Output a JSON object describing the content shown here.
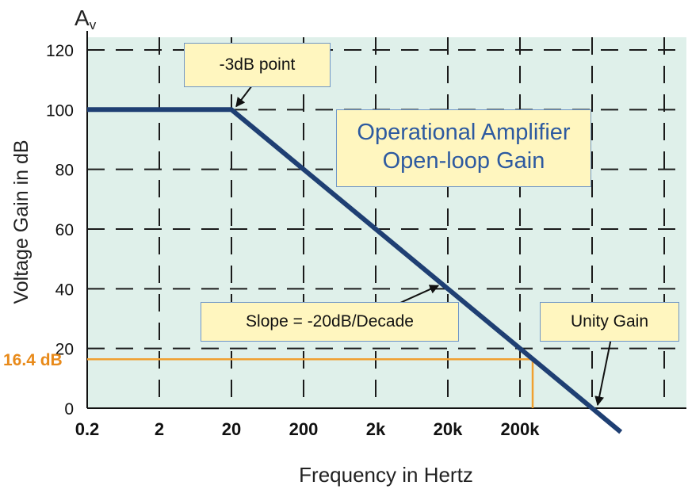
{
  "chart_data": {
    "type": "line",
    "title": "Operational Amplifier Open-loop Gain",
    "title_lines": [
      "Operational Amplifier",
      "Open-loop Gain"
    ],
    "ylabel": "Voltage Gain in dB",
    "ysymbol": "A",
    "ysymbol_sub": "v",
    "xlabel": "Frequency in Hertz",
    "xscale": "log",
    "grid": true,
    "ylim": [
      0,
      120
    ],
    "yticks": [
      0,
      20,
      40,
      60,
      80,
      100,
      120
    ],
    "ytick_labels": [
      "0",
      "20",
      "40",
      "60",
      "80",
      "100",
      "120"
    ],
    "xticks": [
      0.2,
      2,
      20,
      200,
      2000,
      20000,
      200000
    ],
    "xtick_labels": [
      "0.2",
      "2",
      "20",
      "200",
      "2k",
      "20k",
      "200k"
    ],
    "series": [
      {
        "name": "",
        "x": [
          0.2,
          20,
          2000000,
          5000000
        ],
        "y": [
          100,
          100,
          0,
          -8
        ]
      }
    ],
    "annotations": [
      {
        "text": "-3dB point",
        "x": 20,
        "y": 100
      },
      {
        "text": "Slope = -20dB/Decade",
        "x": 20000,
        "y": 40
      },
      {
        "text": "Unity Gain",
        "x": 2000000,
        "y": 0
      }
    ],
    "marker": {
      "label": "16.4 dB",
      "y": 16.4,
      "x": 300000
    },
    "colors": {
      "plot_bg": "#dff0ea",
      "line": "#1f3f73",
      "grid": "#1a1a1a",
      "callout_bg": "#fff6bf",
      "callout_border": "#6f96c7",
      "title_text": "#2d5aa0",
      "marker": "#f0a030"
    }
  }
}
